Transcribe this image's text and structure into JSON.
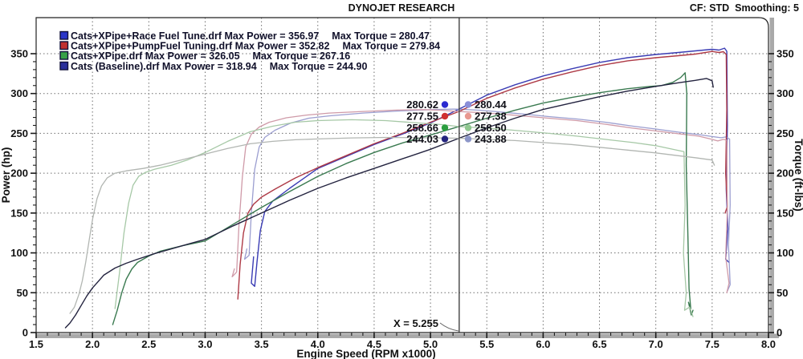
{
  "header": {
    "title": "DYNOJET RESEARCH",
    "settings": "CF: STD  Smoothing: 5"
  },
  "axes": {
    "x": {
      "label": "Engine Speed (RPM x1000)",
      "min": 1.5,
      "max": 8.0,
      "major_step": 0.5,
      "minor_step": 0.1
    },
    "y_left": {
      "label": "Power (hp)",
      "min": 0,
      "max": 350,
      "major_step": 50,
      "minor_step": 10
    },
    "y_right": {
      "label": "Torque (ft-lbs)",
      "min": 0,
      "max": 350,
      "major_step": 50,
      "minor_step": 10
    }
  },
  "cursor": {
    "x": 5.255,
    "label": "X = 5.255"
  },
  "readouts": [
    {
      "power": "280.62",
      "torque": "280.44",
      "power_color": "#2a2ad0",
      "torque_color": "#8a8fd8"
    },
    {
      "power": "277.55",
      "torque": "277.38",
      "power_color": "#d03030",
      "torque_color": "#e89890"
    },
    {
      "power": "258.66",
      "torque": "258.50",
      "power_color": "#2a9e3f",
      "torque_color": "#90c890"
    },
    {
      "power": "244.03",
      "torque": "243.88",
      "power_color": "#24247e",
      "torque_color": "#8c96c8"
    }
  ],
  "legend": [
    {
      "color": "#2a35c8",
      "file": "Cats+XPipe+Race Fuel Tune.drf",
      "max_power": "356.97",
      "max_torque": "280.47"
    },
    {
      "color": "#c03030",
      "file": "Cats+XPipe+PumpFuel Tuning.drf",
      "max_power": "352.82",
      "max_torque": "279.84"
    },
    {
      "color": "#37a048",
      "file": "Cats+XPipe.drf",
      "max_power": "326.05",
      "max_torque": "267.16"
    },
    {
      "color": "#2a2f9a",
      "file": "Cats (Baseline).drf",
      "max_power": "318.94",
      "max_torque": "244.90"
    }
  ],
  "chart_data": {
    "type": "line",
    "xlabel": "Engine Speed (RPM x1000)",
    "ylabel_left": "Power (hp)",
    "ylabel_right": "Torque (ft-lbs)",
    "xlim": [
      1.5,
      8.0
    ],
    "ylim": [
      0,
      350
    ],
    "grid": "dashed",
    "series": [
      {
        "name": "Cats+XPipe+Race Fuel Tune power",
        "role": "power",
        "color": "#3a3cb4",
        "width": 1.4,
        "points": [
          [
            3.43,
            95
          ],
          [
            3.41,
            62
          ],
          [
            3.44,
            58
          ],
          [
            3.46,
            88
          ],
          [
            3.49,
            128
          ],
          [
            3.53,
            152
          ],
          [
            3.6,
            165
          ],
          [
            3.75,
            181
          ],
          [
            4.0,
            206
          ],
          [
            4.25,
            221
          ],
          [
            4.5,
            236
          ],
          [
            4.75,
            249
          ],
          [
            5.0,
            263
          ],
          [
            5.255,
            280.62
          ],
          [
            5.5,
            298
          ],
          [
            5.75,
            311
          ],
          [
            6.0,
            322
          ],
          [
            6.25,
            331
          ],
          [
            6.5,
            339
          ],
          [
            6.75,
            345
          ],
          [
            7.0,
            349
          ],
          [
            7.2,
            351.5
          ],
          [
            7.35,
            353.5
          ],
          [
            7.5,
            355.5
          ],
          [
            7.56,
            354.5
          ],
          [
            7.61,
            356.97
          ],
          [
            7.63,
            353
          ],
          [
            7.635,
            260
          ],
          [
            7.625,
            180
          ],
          [
            7.64,
            130
          ],
          [
            7.62,
            92
          ],
          [
            7.65,
            88
          ]
        ]
      },
      {
        "name": "Cats+XPipe+Race Fuel Tune torque",
        "role": "torque",
        "color": "#9b9ed0",
        "width": 1.3,
        "points": [
          [
            3.37,
            105
          ],
          [
            3.35,
            92
          ],
          [
            3.39,
            97
          ],
          [
            3.41,
            150
          ],
          [
            3.44,
            205
          ],
          [
            3.48,
            233
          ],
          [
            3.53,
            245
          ],
          [
            3.62,
            254
          ],
          [
            3.76,
            263
          ],
          [
            3.92,
            269
          ],
          [
            4.1,
            272
          ],
          [
            4.4,
            275.5
          ],
          [
            4.7,
            278
          ],
          [
            5.0,
            279.8
          ],
          [
            5.2,
            280.47
          ],
          [
            5.255,
            280.44
          ],
          [
            5.45,
            279
          ],
          [
            5.65,
            276.5
          ],
          [
            5.85,
            274
          ],
          [
            6.05,
            271
          ],
          [
            6.3,
            268
          ],
          [
            6.55,
            264
          ],
          [
            6.8,
            259
          ],
          [
            7.0,
            255.5
          ],
          [
            7.2,
            251.5
          ],
          [
            7.38,
            248.5
          ],
          [
            7.5,
            246
          ],
          [
            7.58,
            244.5
          ],
          [
            7.62,
            245.5
          ],
          [
            7.655,
            243
          ],
          [
            7.66,
            160
          ],
          [
            7.645,
            110
          ],
          [
            7.66,
            60
          ],
          [
            7.635,
            52
          ]
        ]
      },
      {
        "name": "Cats+XPipe+PumpFuel Tuning power",
        "role": "power",
        "color": "#ae3a46",
        "width": 1.4,
        "points": [
          [
            3.29,
            42
          ],
          [
            3.31,
            85
          ],
          [
            3.34,
            125
          ],
          [
            3.38,
            150
          ],
          [
            3.43,
            161
          ],
          [
            3.5,
            170
          ],
          [
            3.62,
            180
          ],
          [
            3.8,
            194
          ],
          [
            4.0,
            207
          ],
          [
            4.25,
            222
          ],
          [
            4.5,
            237
          ],
          [
            4.75,
            250
          ],
          [
            5.0,
            264
          ],
          [
            5.255,
            277.55
          ],
          [
            5.5,
            294
          ],
          [
            5.75,
            307
          ],
          [
            6.0,
            318
          ],
          [
            6.25,
            327
          ],
          [
            6.5,
            335
          ],
          [
            6.75,
            341
          ],
          [
            7.0,
            345
          ],
          [
            7.2,
            347.5
          ],
          [
            7.35,
            349.5
          ],
          [
            7.5,
            352.82
          ],
          [
            7.56,
            351.5
          ],
          [
            7.6,
            352.5
          ],
          [
            7.625,
            349
          ],
          [
            7.63,
            280
          ],
          [
            7.62,
            200
          ],
          [
            7.635,
            158
          ],
          [
            7.615,
            150
          ]
        ]
      },
      {
        "name": "Cats+XPipe+PumpFuel Tuning torque",
        "role": "torque",
        "color": "#cf9aa8",
        "width": 1.3,
        "points": [
          [
            3.26,
            80
          ],
          [
            3.24,
            70
          ],
          [
            3.28,
            76
          ],
          [
            3.3,
            135
          ],
          [
            3.33,
            195
          ],
          [
            3.36,
            233
          ],
          [
            3.41,
            249
          ],
          [
            3.48,
            258
          ],
          [
            3.57,
            264
          ],
          [
            3.72,
            269.5
          ],
          [
            3.9,
            273
          ],
          [
            4.1,
            275.5
          ],
          [
            4.4,
            277.5
          ],
          [
            4.7,
            279.2
          ],
          [
            4.95,
            279.84
          ],
          [
            5.1,
            279
          ],
          [
            5.255,
            277.38
          ],
          [
            5.45,
            276
          ],
          [
            5.65,
            274
          ],
          [
            5.85,
            271.5
          ],
          [
            6.05,
            269
          ],
          [
            6.3,
            266
          ],
          [
            6.55,
            261.5
          ],
          [
            6.8,
            256.5
          ],
          [
            7.0,
            253
          ],
          [
            7.2,
            249.5
          ],
          [
            7.38,
            246.5
          ],
          [
            7.5,
            242.5
          ],
          [
            7.55,
            240.5
          ],
          [
            7.6,
            242.5
          ],
          [
            7.63,
            241.5
          ],
          [
            7.635,
            155
          ],
          [
            7.62,
            95
          ],
          [
            7.65,
            62
          ],
          [
            7.63,
            50
          ]
        ]
      },
      {
        "name": "Cats+XPipe power",
        "role": "power",
        "color": "#3a7a50",
        "width": 1.4,
        "points": [
          [
            2.18,
            10
          ],
          [
            2.22,
            28
          ],
          [
            2.26,
            50
          ],
          [
            2.3,
            67
          ],
          [
            2.35,
            80
          ],
          [
            2.4,
            88
          ],
          [
            2.5,
            96
          ],
          [
            2.6,
            102
          ],
          [
            2.8,
            109
          ],
          [
            3.0,
            115
          ],
          [
            3.25,
            136
          ],
          [
            3.5,
            157
          ],
          [
            3.75,
            177
          ],
          [
            4.0,
            196
          ],
          [
            4.25,
            212
          ],
          [
            4.5,
            226
          ],
          [
            4.75,
            238
          ],
          [
            5.0,
            248
          ],
          [
            5.255,
            258.66
          ],
          [
            5.5,
            269
          ],
          [
            5.75,
            279
          ],
          [
            6.0,
            288
          ],
          [
            6.25,
            295
          ],
          [
            6.5,
            301
          ],
          [
            6.75,
            306
          ],
          [
            6.95,
            309
          ],
          [
            7.05,
            310
          ],
          [
            7.15,
            314
          ],
          [
            7.22,
            320
          ],
          [
            7.26,
            326.05
          ],
          [
            7.275,
            300
          ],
          [
            7.27,
            210
          ],
          [
            7.285,
            120
          ],
          [
            7.295,
            55
          ],
          [
            7.31,
            30
          ],
          [
            7.29,
            38
          ],
          [
            7.315,
            22
          ],
          [
            7.33,
            28
          ]
        ]
      },
      {
        "name": "Cats+XPipe torque",
        "role": "torque",
        "color": "#a6c8a6",
        "width": 1.3,
        "points": [
          [
            2.2,
            30
          ],
          [
            2.24,
            75
          ],
          [
            2.28,
            125
          ],
          [
            2.32,
            162
          ],
          [
            2.36,
            185
          ],
          [
            2.41,
            196
          ],
          [
            2.47,
            201
          ],
          [
            2.55,
            205
          ],
          [
            2.7,
            210
          ],
          [
            2.85,
            217
          ],
          [
            3.0,
            226
          ],
          [
            3.2,
            240
          ],
          [
            3.4,
            252
          ],
          [
            3.6,
            259
          ],
          [
            3.8,
            264
          ],
          [
            4.0,
            266
          ],
          [
            4.3,
            267.16
          ],
          [
            4.6,
            266
          ],
          [
            4.9,
            263
          ],
          [
            5.1,
            261
          ],
          [
            5.255,
            258.5
          ],
          [
            5.45,
            257
          ],
          [
            5.65,
            255
          ],
          [
            5.85,
            252.5
          ],
          [
            6.05,
            250
          ],
          [
            6.3,
            246.5
          ],
          [
            6.55,
            242.5
          ],
          [
            6.8,
            238.5
          ],
          [
            7.0,
            234.5
          ],
          [
            7.15,
            230
          ],
          [
            7.25,
            227
          ],
          [
            7.26,
            160
          ],
          [
            7.245,
            100
          ],
          [
            7.27,
            50
          ],
          [
            7.255,
            28
          ],
          [
            7.3,
            32
          ],
          [
            7.33,
            20
          ]
        ]
      },
      {
        "name": "Cats (Baseline) power",
        "role": "power",
        "color": "#23233f",
        "width": 1.4,
        "points": [
          [
            1.76,
            6
          ],
          [
            1.8,
            12
          ],
          [
            1.85,
            22
          ],
          [
            1.9,
            34
          ],
          [
            1.95,
            46
          ],
          [
            2.0,
            56
          ],
          [
            2.1,
            72
          ],
          [
            2.2,
            81
          ],
          [
            2.3,
            87
          ],
          [
            2.4,
            92
          ],
          [
            2.55,
            99
          ],
          [
            2.7,
            105
          ],
          [
            2.85,
            111
          ],
          [
            3.0,
            117
          ],
          [
            3.25,
            134
          ],
          [
            3.5,
            150
          ],
          [
            3.75,
            166
          ],
          [
            4.0,
            181
          ],
          [
            4.25,
            194
          ],
          [
            4.5,
            206
          ],
          [
            4.75,
            218
          ],
          [
            5.0,
            230
          ],
          [
            5.255,
            244.03
          ],
          [
            5.5,
            257
          ],
          [
            5.75,
            269
          ],
          [
            6.0,
            280
          ],
          [
            6.25,
            288
          ],
          [
            6.5,
            296
          ],
          [
            6.75,
            303
          ],
          [
            7.0,
            309
          ],
          [
            7.2,
            313.5
          ],
          [
            7.35,
            316.5
          ],
          [
            7.45,
            318.94
          ],
          [
            7.5,
            316
          ],
          [
            7.51,
            308
          ]
        ]
      },
      {
        "name": "Cats (Baseline) torque",
        "role": "torque",
        "color": "#b2b6b2",
        "width": 1.3,
        "points": [
          [
            1.8,
            24
          ],
          [
            1.84,
            32
          ],
          [
            1.88,
            48
          ],
          [
            1.91,
            65
          ],
          [
            1.94,
            88
          ],
          [
            1.97,
            115
          ],
          [
            2.0,
            142
          ],
          [
            2.04,
            168
          ],
          [
            2.08,
            184
          ],
          [
            2.13,
            194
          ],
          [
            2.2,
            200
          ],
          [
            2.3,
            203
          ],
          [
            2.45,
            206
          ],
          [
            2.6,
            210
          ],
          [
            2.8,
            217
          ],
          [
            3.0,
            224
          ],
          [
            3.2,
            231
          ],
          [
            3.4,
            237
          ],
          [
            3.6,
            240
          ],
          [
            3.8,
            242
          ],
          [
            4.0,
            243
          ],
          [
            4.3,
            244.3
          ],
          [
            4.6,
            244.9
          ],
          [
            4.9,
            244.5
          ],
          [
            5.1,
            244.2
          ],
          [
            5.255,
            243.88
          ],
          [
            5.5,
            242.5
          ],
          [
            5.75,
            241
          ],
          [
            6.0,
            238.5
          ],
          [
            6.25,
            236
          ],
          [
            6.5,
            232.5
          ],
          [
            6.75,
            229
          ],
          [
            7.0,
            225.5
          ],
          [
            7.2,
            222
          ],
          [
            7.35,
            219.5
          ],
          [
            7.5,
            216.5
          ],
          [
            7.52,
            210
          ]
        ]
      }
    ]
  }
}
